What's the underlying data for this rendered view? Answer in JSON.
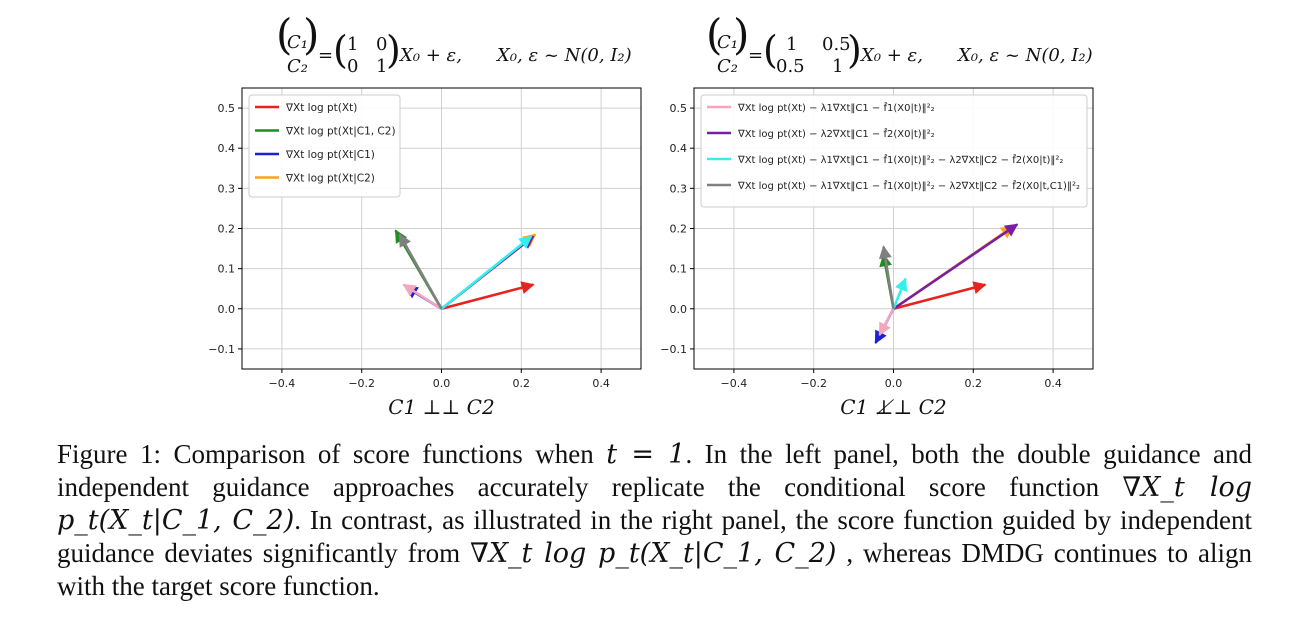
{
  "figure": {
    "caption_label": "Figure 1:",
    "caption_parts": [
      "Comparison of score functions when ",
      "t = 1",
      ". In the left panel, both the double guidance and independent guidance approaches accurately replicate the conditional score function ",
      "∇X_t log p_t(X_t|C_1, C_2)",
      ". In contrast, as illustrated in the right panel, the score function guided by independent guidance deviates significantly from ",
      "∇X_t log p_t(X_t|C_1, C_2)",
      " , whereas DMDG continues to align with the target score function."
    ]
  },
  "chart_data": [
    {
      "type": "quiver",
      "title": "(C1, C2) = (1 0; 0 1) X0 + ε,    X0, ε ~ N(0, I2)",
      "xlabel": "C1 ⊥⊥ C2",
      "ylabel": "",
      "xlim": [
        -0.5,
        0.5
      ],
      "ylim": [
        -0.15,
        0.55
      ],
      "xticks": [
        -0.4,
        -0.2,
        0.0,
        0.2,
        0.4
      ],
      "yticks": [
        -0.1,
        0.0,
        0.1,
        0.2,
        0.3,
        0.4,
        0.5
      ],
      "xtick_labels": [
        "−0.4",
        "−0.2",
        "0.0",
        "0.2",
        "0.4"
      ],
      "ytick_labels": [
        "−0.1",
        "0.0",
        "0.1",
        "0.2",
        "0.3",
        "0.4",
        "0.5"
      ],
      "grid": true,
      "legend_position": "top-left",
      "series": [
        {
          "name": "∇Xt log pt(Xt)",
          "color": "#e8231f",
          "origin": [
            0,
            0
          ],
          "vector": [
            0.23,
            0.06
          ]
        },
        {
          "name": "∇Xt log pt(Xt|C1, C2)",
          "color": "#228b22",
          "origin": [
            0,
            0
          ],
          "vector": [
            -0.115,
            0.195
          ]
        },
        {
          "name": "∇Xt log pt(Xt|C1)",
          "color": "#1f1fd6",
          "origin": [
            0,
            0
          ],
          "vector": [
            -0.09,
            0.055
          ]
        },
        {
          "name": "∇Xt log pt(Xt|C2)",
          "color": "#ff9f1a",
          "origin": [
            0,
            0
          ],
          "vector": [
            0.235,
            0.185
          ]
        },
        {
          "name": "",
          "color": "#f4a6bf",
          "origin": [
            0,
            0
          ],
          "vector": [
            -0.095,
            0.06
          ]
        },
        {
          "name": "",
          "color": "#7a1fa2",
          "origin": [
            0,
            0
          ],
          "vector": [
            0.23,
            0.18
          ]
        },
        {
          "name": "",
          "color": "#33f0f0",
          "origin": [
            0,
            0
          ],
          "vector": [
            0.225,
            0.18
          ]
        },
        {
          "name": "",
          "color": "#808080",
          "origin": [
            0,
            0
          ],
          "vector": [
            -0.105,
            0.185
          ]
        }
      ]
    },
    {
      "type": "quiver",
      "title": "(C1, C2) = (1 0.5; 0.5 1) X0 + ε,    X0, ε ~ N(0, I2)",
      "xlabel": "C1 ⊥̸⊥ C2",
      "ylabel": "",
      "xlim": [
        -0.5,
        0.5
      ],
      "ylim": [
        -0.15,
        0.55
      ],
      "xticks": [
        -0.4,
        -0.2,
        0.0,
        0.2,
        0.4
      ],
      "yticks": [
        -0.1,
        0.0,
        0.1,
        0.2,
        0.3,
        0.4,
        0.5
      ],
      "xtick_labels": [
        "−0.4",
        "−0.2",
        "0.0",
        "0.2",
        "0.4"
      ],
      "ytick_labels": [
        "−0.1",
        "0.0",
        "0.1",
        "0.2",
        "0.3",
        "0.4",
        "0.5"
      ],
      "grid": true,
      "legend_position": "top-left",
      "series": [
        {
          "name": "",
          "color": "#e8231f",
          "origin": [
            0,
            0
          ],
          "vector": [
            0.23,
            0.06
          ]
        },
        {
          "name": "",
          "color": "#228b22",
          "origin": [
            0,
            0
          ],
          "vector": [
            -0.025,
            0.135
          ]
        },
        {
          "name": "",
          "color": "#1f1fd6",
          "origin": [
            0,
            0
          ],
          "vector": [
            -0.045,
            -0.085
          ]
        },
        {
          "name": "",
          "color": "#ff9f1a",
          "origin": [
            0,
            0
          ],
          "vector": [
            0.3,
            0.205
          ]
        },
        {
          "name": "∇Xt log pt(Xt) − λ1∇Xt‖C1 − f̂1(X0|t)‖²₂",
          "color": "#f4a6bf",
          "origin": [
            0,
            0
          ],
          "vector": [
            -0.035,
            -0.065
          ]
        },
        {
          "name": "∇Xt log pt(Xt) − λ2∇Xt‖C1 − f̂2(X0|t)‖²₂",
          "color": "#7a1fa2",
          "origin": [
            0,
            0
          ],
          "vector": [
            0.31,
            0.21
          ]
        },
        {
          "name": "∇Xt log pt(Xt) − λ1∇Xt‖C1 − f̂1(X0|t)‖²₂ − λ2∇Xt‖C2 − f̂2(X0|t)‖²₂",
          "color": "#33f0f0",
          "origin": [
            0,
            0
          ],
          "vector": [
            0.03,
            0.075
          ]
        },
        {
          "name": "∇Xt log pt(Xt) − λ1∇Xt‖C1 − f̂1(X0|t)‖²₂ − λ2∇Xt‖C2 − f̂2(X0|t,C1)‖²₂",
          "color": "#808080",
          "origin": [
            0,
            0
          ],
          "vector": [
            -0.025,
            0.155
          ]
        }
      ]
    }
  ],
  "panel_titles": {
    "left": {
      "lhs_top": "C₁",
      "lhs_bottom": "C₂",
      "eq": "=",
      "m11": "1",
      "m12": "0",
      "m21": "0",
      "m22": "1",
      "rhs": "X₀ + ε,",
      "dist": "X₀, ε ~ N(0, I₂)"
    },
    "right": {
      "lhs_top": "C₁",
      "lhs_bottom": "C₂",
      "eq": "=",
      "m11": "1",
      "m12": "0.5",
      "m21": "0.5",
      "m22": "1",
      "rhs": "X₀ + ε,",
      "dist": "X₀, ε ~ N(0, I₂)"
    }
  }
}
